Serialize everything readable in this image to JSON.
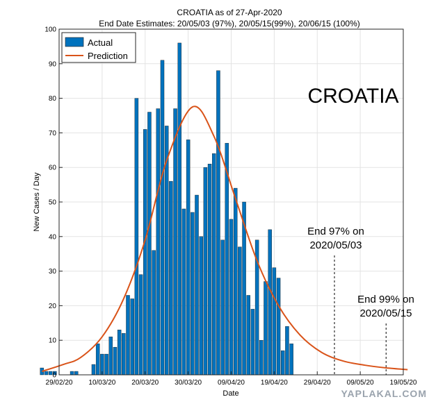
{
  "chart_data": {
    "type": "bar",
    "title": "CROATIA as of 27-Apr-2020",
    "subtitle": "End Date Estimates: 20/05/03 (97%), 20/05/15(99%), 20/06/15 (100%)",
    "xlabel": "Date",
    "ylabel": "New Cases / Day",
    "ylim": [
      0,
      100
    ],
    "yticks": [
      0,
      10,
      20,
      30,
      40,
      50,
      60,
      70,
      80,
      90,
      100
    ],
    "xticks": [
      "29/02/20",
      "10/03/20",
      "20/03/20",
      "30/03/20",
      "09/04/20",
      "19/04/20",
      "29/04/20",
      "09/05/20",
      "19/05/20"
    ],
    "grid": true,
    "legend_position": "top-left",
    "series": [
      {
        "name": "Actual",
        "color": "#0072bd",
        "dates": [
          "2020-02-25",
          "2020-02-26",
          "2020-02-27",
          "2020-02-28",
          "2020-02-29",
          "2020-03-01",
          "2020-03-02",
          "2020-03-03",
          "2020-03-04",
          "2020-03-05",
          "2020-03-06",
          "2020-03-07",
          "2020-03-08",
          "2020-03-09",
          "2020-03-10",
          "2020-03-11",
          "2020-03-12",
          "2020-03-13",
          "2020-03-14",
          "2020-03-15",
          "2020-03-16",
          "2020-03-17",
          "2020-03-18",
          "2020-03-19",
          "2020-03-20",
          "2020-03-21",
          "2020-03-22",
          "2020-03-23",
          "2020-03-24",
          "2020-03-25",
          "2020-03-26",
          "2020-03-27",
          "2020-03-28",
          "2020-03-29",
          "2020-03-30",
          "2020-03-31",
          "2020-04-01",
          "2020-04-02",
          "2020-04-03",
          "2020-04-04",
          "2020-04-05",
          "2020-04-06",
          "2020-04-07",
          "2020-04-08",
          "2020-04-09",
          "2020-04-10",
          "2020-04-11",
          "2020-04-12",
          "2020-04-13",
          "2020-04-14",
          "2020-04-15",
          "2020-04-16",
          "2020-04-17",
          "2020-04-18",
          "2020-04-19",
          "2020-04-20",
          "2020-04-21",
          "2020-04-22",
          "2020-04-23",
          "2020-04-24",
          "2020-04-25",
          "2020-04-26",
          "2020-04-27"
        ],
        "values": [
          2,
          1,
          1,
          1,
          0,
          0,
          0,
          1,
          1,
          0,
          0,
          0,
          3,
          9,
          6,
          6,
          11,
          8,
          13,
          12,
          23,
          22,
          80,
          29,
          71,
          76,
          36,
          77,
          91,
          72,
          56,
          77,
          96,
          48,
          68,
          47,
          52,
          40,
          60,
          61,
          64,
          88,
          39,
          67,
          45,
          54,
          37,
          50,
          23,
          19,
          39,
          10,
          27,
          42,
          31,
          28,
          7,
          14,
          9,
          0,
          0,
          0,
          0
        ]
      },
      {
        "name": "Prediction",
        "color": "#d95319",
        "type": "line",
        "peak_date": "2020-03-31",
        "peak_value": 77.5,
        "dates": [
          "2020-02-25",
          "2020-03-01",
          "2020-03-05",
          "2020-03-10",
          "2020-03-15",
          "2020-03-20",
          "2020-03-25",
          "2020-03-31",
          "2020-04-05",
          "2020-04-10",
          "2020-04-15",
          "2020-04-20",
          "2020-04-25",
          "2020-04-30",
          "2020-05-05",
          "2020-05-10",
          "2020-05-15",
          "2020-05-20"
        ],
        "values": [
          1,
          3,
          5,
          11,
          22,
          39,
          62,
          77.5,
          69,
          51,
          33,
          20,
          11.5,
          6.5,
          4,
          2.8,
          2,
          1.5
        ]
      }
    ],
    "annotations": [
      {
        "date": "2020-05-03",
        "label_line1": "End 97% on",
        "label_line2": "2020/05/03"
      },
      {
        "date": "2020-05-15",
        "label_line1": "End 99% on",
        "label_line2": "2020/05/15"
      }
    ],
    "country_label": "CROATIA"
  },
  "watermark": "YAPLAKAL.COM"
}
